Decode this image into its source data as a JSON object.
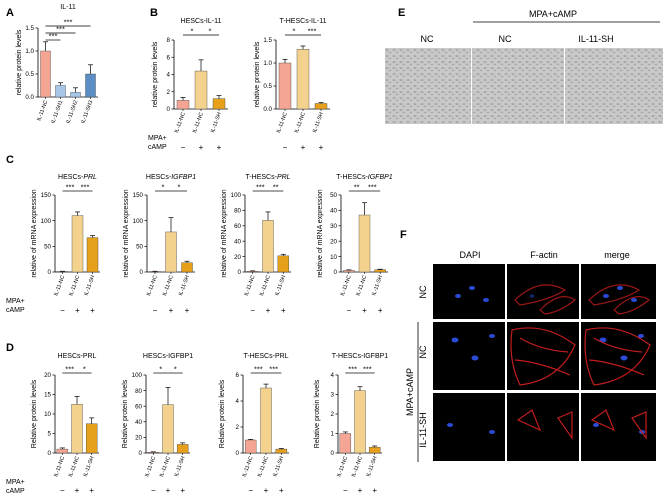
{
  "panel_letters": {
    "A": "A",
    "B": "B",
    "C": "C",
    "D": "D",
    "E": "E",
    "F": "F"
  },
  "x_labels": {
    "nc": "IL-11-NC",
    "sh": "IL-11-SH",
    "sh1": "IL-11-SH1",
    "sh2": "IL-11-SH2",
    "sh3": "IL-11-SH3"
  },
  "treatment": {
    "label_line1": "MPA+",
    "label_line2": "cAMP",
    "minus": "−",
    "plus": "+"
  },
  "colors": {
    "nc": "#f4a593",
    "treated": "#f3d28e",
    "sh": "#e6a01a",
    "sh_a": "#a8c7e8",
    "sh_c": "#5b8ec4"
  },
  "chart_data": [
    {
      "panel": "A",
      "type": "bar",
      "title": "IL-11",
      "ylabel": "relative protein levels",
      "ylim": [
        0,
        1.5
      ],
      "yticks": [
        0,
        0.5,
        1.0,
        1.5
      ],
      "categories": [
        "IL-11-NC",
        "IL-11-SH1",
        "IL-11-SH2",
        "IL-11-SH3"
      ],
      "values": [
        1.0,
        0.25,
        0.1,
        0.5
      ],
      "errors": [
        0.2,
        0.06,
        0.1,
        0.2
      ],
      "sig": [
        "***",
        "***",
        "***"
      ]
    },
    {
      "panel": "B",
      "type": "bar",
      "title": "HESCs-IL-11",
      "ylabel": "relative protein levels",
      "ylim": [
        0,
        8
      ],
      "yticks": [
        0,
        2,
        4,
        6,
        8
      ],
      "categories": [
        "IL-11-NC",
        "IL-11-NC",
        "IL-11-SH"
      ],
      "treatment": [
        "−",
        "+",
        "+"
      ],
      "values": [
        1.0,
        4.4,
        1.2
      ],
      "errors": [
        0.35,
        1.3,
        0.35
      ],
      "sig": [
        "*",
        "*"
      ]
    },
    {
      "panel": "B",
      "type": "bar",
      "title": "T-HESCs-IL-11",
      "ylabel": "relative protein levels",
      "ylim": [
        0,
        1.5
      ],
      "yticks": [
        0,
        0.5,
        1.0,
        1.5
      ],
      "categories": [
        "IL-11-NC",
        "IL-11-NC",
        "IL-11-SH"
      ],
      "treatment": [
        "−",
        "+",
        "+"
      ],
      "values": [
        1.0,
        1.3,
        0.12
      ],
      "errors": [
        0.08,
        0.07,
        0.02
      ],
      "sig": [
        "*",
        "***"
      ]
    },
    {
      "panel": "C",
      "type": "bar",
      "title": "HESCs-",
      "title_gene": "PRL",
      "ylabel": "relative of mRNA expression",
      "ylim": [
        0,
        150
      ],
      "yticks": [
        0,
        50,
        100,
        150
      ],
      "categories": [
        "IL-11-NC",
        "IL-11-NC",
        "IL-11-SH"
      ],
      "treatment": [
        "−",
        "+",
        "+"
      ],
      "values": [
        1,
        110,
        67
      ],
      "errors": [
        0.5,
        7,
        4
      ],
      "sig": [
        "***",
        "***"
      ]
    },
    {
      "panel": "C",
      "type": "bar",
      "title": "HESCs-",
      "title_gene": "IGFBP1",
      "ylabel": "relative of mRNA expression",
      "ylim": [
        0,
        150
      ],
      "yticks": [
        0,
        50,
        100,
        150
      ],
      "categories": [
        "IL-11-NC",
        "IL-11-NC",
        "IL-11-SH"
      ],
      "treatment": [
        "−",
        "+",
        "+"
      ],
      "values": [
        1,
        78,
        18
      ],
      "errors": [
        0.5,
        28,
        3
      ],
      "sig": [
        "*",
        "*"
      ]
    },
    {
      "panel": "C",
      "type": "bar",
      "title": "T-HESCs-",
      "title_gene": "PRL",
      "ylabel": "relative of mRNA expression",
      "ylim": [
        0,
        100
      ],
      "yticks": [
        0,
        20,
        40,
        60,
        80,
        100
      ],
      "categories": [
        "IL-11-NC",
        "IL-11-NC",
        "IL-11-SH"
      ],
      "treatment": [
        "−",
        "+",
        "+"
      ],
      "values": [
        1,
        67,
        21
      ],
      "errors": [
        0.5,
        11,
        2
      ],
      "sig": [
        "***",
        "**"
      ]
    },
    {
      "panel": "C",
      "type": "bar",
      "title": "T-HESCs-",
      "title_gene": "IGFBP1",
      "ylabel": "relative of mRNA expression",
      "ylim": [
        0,
        50
      ],
      "yticks": [
        0,
        10,
        20,
        30,
        40,
        50
      ],
      "categories": [
        "IL-11-NC",
        "IL-11-NC",
        "IL-11-SH"
      ],
      "treatment": [
        "−",
        "+",
        "+"
      ],
      "values": [
        1,
        37,
        1.5
      ],
      "errors": [
        0.4,
        8,
        0.3
      ],
      "sig": [
        "**",
        "***"
      ]
    },
    {
      "panel": "D",
      "type": "bar",
      "title": "HESCs-PRL",
      "ylabel": "Relative protein levels",
      "ylim": [
        0,
        20
      ],
      "yticks": [
        0,
        5,
        10,
        15,
        20
      ],
      "categories": [
        "IL-11-NC",
        "IL-11-NC",
        "IL-11-SH"
      ],
      "treatment": [
        "−",
        "+",
        "+"
      ],
      "values": [
        1,
        12.5,
        7.5
      ],
      "errors": [
        0.3,
        2,
        1.5
      ],
      "sig": [
        "***",
        "*"
      ]
    },
    {
      "panel": "D",
      "type": "bar",
      "title": "HESCs-IGFBP1",
      "ylabel": "Relative protein levels",
      "ylim": [
        0,
        100
      ],
      "yticks": [
        0,
        20,
        40,
        60,
        80,
        100
      ],
      "categories": [
        "IL-11-NC",
        "IL-11-NC",
        "IL-11-SH"
      ],
      "treatment": [
        "−",
        "+",
        "+"
      ],
      "values": [
        1,
        62,
        11
      ],
      "errors": [
        0.5,
        22,
        2
      ],
      "sig": [
        "*",
        "*"
      ]
    },
    {
      "panel": "D",
      "type": "bar",
      "title": "T-HESCs-PRL",
      "ylabel": "Relative protein levels",
      "ylim": [
        0,
        6
      ],
      "yticks": [
        0,
        2,
        4,
        6
      ],
      "categories": [
        "IL-11-NC",
        "IL-11-NC",
        "IL-11-SH"
      ],
      "treatment": [
        "−",
        "+",
        "+"
      ],
      "values": [
        1,
        5,
        0.3
      ],
      "errors": [
        0.05,
        0.3,
        0.05
      ],
      "sig": [
        "***",
        "***"
      ]
    },
    {
      "panel": "D",
      "type": "bar",
      "title": "T-HESCs-IGFBP1",
      "ylabel": "Relative protein levels",
      "ylim": [
        0,
        4
      ],
      "yticks": [
        0,
        1,
        2,
        3,
        4
      ],
      "categories": [
        "IL-11-NC",
        "IL-11-NC",
        "IL-11-SH"
      ],
      "treatment": [
        "−",
        "+",
        "+"
      ],
      "values": [
        1,
        3.2,
        0.3
      ],
      "errors": [
        0.08,
        0.2,
        0.06
      ],
      "sig": [
        "***",
        "***"
      ]
    }
  ],
  "panel_e": {
    "group_label": "MPA+cAMP",
    "col_labels": [
      "NC",
      "NC",
      "IL-11-SH"
    ]
  },
  "panel_f": {
    "col_labels": [
      "DAPI",
      "F-actin",
      "merge"
    ],
    "row_labels": [
      "NC",
      "NC",
      "IL-11-SH"
    ],
    "group_label": "MPA+cAMP"
  }
}
